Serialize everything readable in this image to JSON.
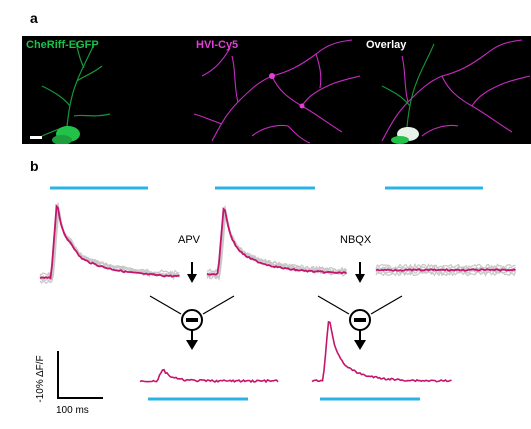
{
  "panel_a": {
    "letter": "a",
    "images": [
      {
        "label": "CheRiff-EGFP",
        "color": "#19c04a"
      },
      {
        "label": "HVI-Cy5",
        "color": "#e23fd8"
      },
      {
        "label": "Overlay",
        "color": "#ffffff"
      }
    ]
  },
  "panel_b": {
    "letter": "b",
    "drug_labels": {
      "apv": "APV",
      "nbqx": "NBQX"
    },
    "scale_bar": {
      "y_label": "-10% ΔF/F",
      "x_label": "100 ms"
    },
    "colors": {
      "stim": "#2bb3e6",
      "mean_trace": "#c4156d",
      "trial_trace": "#c8c8c8",
      "symbol": "#000000"
    }
  }
}
